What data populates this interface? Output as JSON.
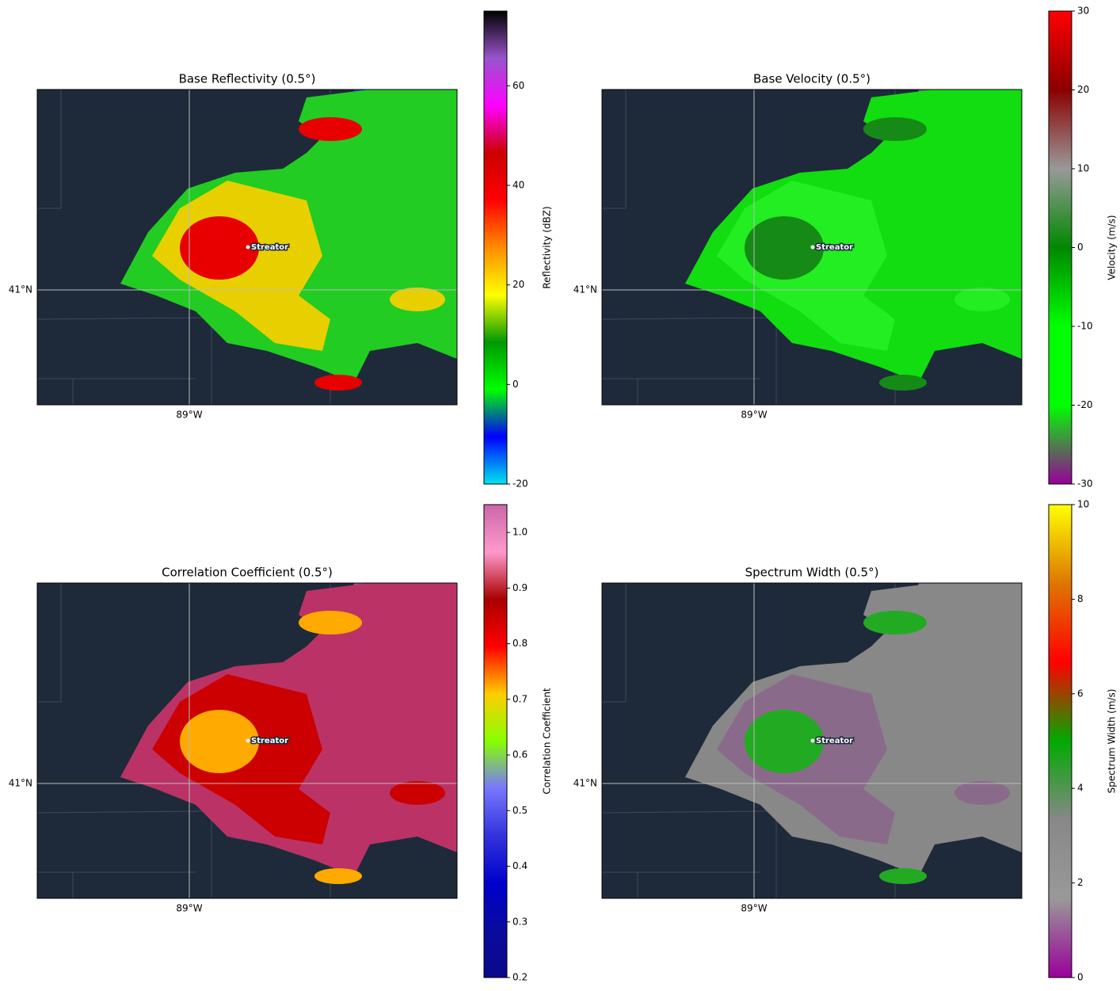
{
  "panels": [
    {
      "title": "Base Reflectivity (0.5°)",
      "lat_label": "41°N",
      "lon_label": "89°W",
      "city": "Streator",
      "colorbar": {
        "label": "Reflectivity (dBZ)",
        "lim": [
          -20,
          75
        ],
        "ticks": [
          -20,
          0,
          20,
          40,
          60
        ],
        "colors": [
          "#00e5ee",
          "#0000ff",
          "#00ff00",
          "#009900",
          "#ffff00",
          "#ff8c00",
          "#ff0000",
          "#cc0000",
          "#ff00ff",
          "#9955cc",
          "#000000"
        ]
      }
    },
    {
      "title": "Base Velocity (0.5°)",
      "lat_label": "41°N",
      "lon_label": "89°W",
      "city": "Streator",
      "colorbar": {
        "label": "Velocity (m/s)",
        "lim": [
          -30,
          30
        ],
        "ticks": [
          -30,
          -20,
          -10,
          0,
          10,
          20,
          30
        ],
        "colors": [
          "#990099",
          "#00ff00",
          "#00ff00",
          "#008800",
          "#999999",
          "#8b0000",
          "#ff0000"
        ]
      }
    },
    {
      "title": "Correlation Coefficient (0.5°)",
      "lat_label": "41°N",
      "lon_label": "89°W",
      "city": "Streator",
      "colorbar": {
        "label": "Correlation Coefficient",
        "lim": [
          0.2,
          1.05
        ],
        "ticks": [
          0.2,
          0.3,
          0.4,
          0.5,
          0.6,
          0.7,
          0.8,
          0.9,
          {
            "value": 1,
            "label": "1.0"
          }
        ],
        "colors": [
          "#0a0a8a",
          "#0a0aa0",
          "#0000cc",
          "#3333dd",
          "#7777ff",
          "#88ff00",
          "#ffcc00",
          "#ff0000",
          "#aa0000",
          "#ff99cc",
          "#cc66aa"
        ]
      }
    },
    {
      "title": "Spectrum Width (0.5°)",
      "lat_label": "41°N",
      "lon_label": "89°W",
      "city": "Streator",
      "colorbar": {
        "label": "Spectrum Width (m/s)",
        "lim": [
          0,
          10
        ],
        "ticks": [
          0,
          2,
          4,
          6,
          8,
          10
        ],
        "colors": [
          "#990099",
          "#999999",
          "#888888",
          "#00aa00",
          "#ff0000",
          "#dd7700",
          "#ffff00"
        ]
      }
    }
  ]
}
